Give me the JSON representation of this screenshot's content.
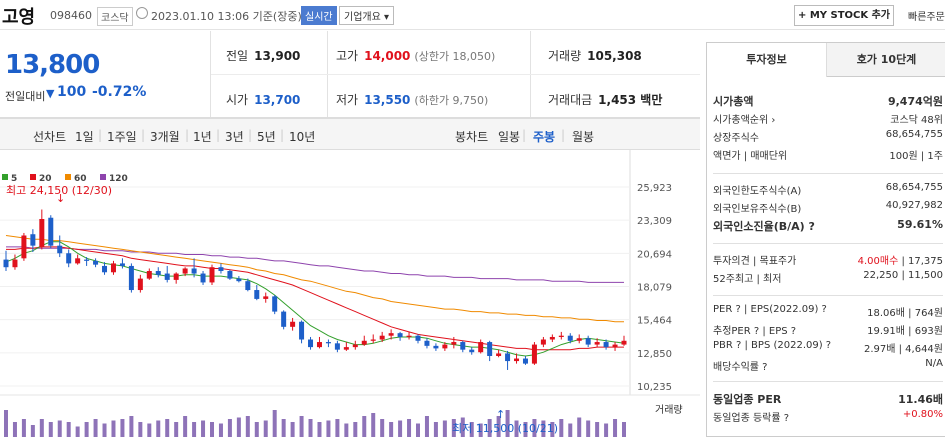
{
  "header": {
    "name": "고영",
    "code": "098460",
    "market": "코스닥",
    "datetime": "2023.01.10 13:06 기준(장중)",
    "realtime": "실시간",
    "company_btn": "기업개요 ▾",
    "mystock_btn": "+ MY STOCK 추가",
    "fast_link": "빠른주문"
  },
  "summary": {
    "price": "13,800",
    "change_label": "전일대비",
    "change_arrow": "▼",
    "change_value": "100",
    "change_pct": "-0.72%",
    "prev_label": "전일",
    "prev": "13,900",
    "high_label": "고가",
    "high": "14,000",
    "upper_limit": "(상한가 18,050)",
    "volume_label": "거래량",
    "volume": "105,308",
    "open_label": "시가",
    "open": "13,700",
    "low_label": "저가",
    "low": "13,550",
    "lower_limit": "(하한가 9,750)",
    "amount_label": "거래대금",
    "amount": "1,453 백만"
  },
  "periods": {
    "line_label": "선차트",
    "line": [
      "1일",
      "1주일",
      "3개월",
      "1년",
      "3년",
      "5년",
      "10년"
    ],
    "candle_label": "봉차트",
    "candle": [
      "일봉",
      "주봉",
      "월봉"
    ],
    "active_candle": "주봉"
  },
  "chart_data": {
    "type": "candlestick",
    "legend": [
      "5",
      "20",
      "60",
      "120"
    ],
    "legend_colors": [
      "#33a02c",
      "#e0111c",
      "#f08a00",
      "#8e44ad"
    ],
    "y_ticks": [
      "25,923",
      "23,309",
      "20,694",
      "18,079",
      "15,464",
      "12,850",
      "10,235"
    ],
    "y_tick_values": [
      25923,
      23309,
      20694,
      18079,
      15464,
      12850,
      10235
    ],
    "ylim": [
      10235,
      25923
    ],
    "high_label": "최고 24,150 (12/30)",
    "low_label": "최저 11,500 (10/21)",
    "volume_label": "거래량",
    "candles": [
      [
        20200,
        19600,
        20900,
        19300
      ],
      [
        19600,
        20200,
        20600,
        19400
      ],
      [
        20300,
        22100,
        22300,
        20100
      ],
      [
        22200,
        21300,
        22600,
        20800
      ],
      [
        21200,
        23400,
        24150,
        21000
      ],
      [
        23500,
        21300,
        23700,
        21100
      ],
      [
        21300,
        20700,
        22100,
        20400
      ],
      [
        20700,
        19900,
        21000,
        19600
      ],
      [
        19900,
        20300,
        20600,
        19800
      ],
      [
        20200,
        20100,
        20400,
        19700
      ],
      [
        20100,
        19800,
        20300,
        19600
      ],
      [
        19700,
        19200,
        20000,
        19000
      ],
      [
        19200,
        19900,
        20100,
        19000
      ],
      [
        19900,
        19700,
        20300,
        19500
      ],
      [
        19700,
        17800,
        19900,
        17600
      ],
      [
        17800,
        18700,
        19000,
        17600
      ],
      [
        18700,
        19300,
        19500,
        18600
      ],
      [
        19300,
        19000,
        19600,
        18800
      ],
      [
        19100,
        18600,
        19700,
        18400
      ],
      [
        18600,
        19100,
        19200,
        18300
      ],
      [
        19100,
        19500,
        19600,
        18900
      ],
      [
        19500,
        19100,
        20300,
        18800
      ],
      [
        19100,
        18400,
        19300,
        18200
      ],
      [
        18400,
        19600,
        19800,
        18200
      ],
      [
        19600,
        19300,
        19900,
        19100
      ],
      [
        19300,
        18700,
        19400,
        18600
      ],
      [
        18700,
        18500,
        18900,
        18400
      ],
      [
        18500,
        17800,
        18700,
        17700
      ],
      [
        17800,
        17100,
        18200,
        17000
      ],
      [
        17100,
        17300,
        17600,
        16800
      ],
      [
        17300,
        16100,
        17400,
        15900
      ],
      [
        16100,
        14900,
        16200,
        14700
      ],
      [
        14900,
        15300,
        15600,
        14600
      ],
      [
        15300,
        13900,
        15400,
        13600
      ],
      [
        13900,
        13300,
        14100,
        13100
      ],
      [
        13300,
        13700,
        14100,
        13200
      ],
      [
        13700,
        13600,
        13900,
        13300
      ],
      [
        13600,
        13100,
        13800,
        12900
      ],
      [
        13100,
        13300,
        13700,
        13000
      ],
      [
        13300,
        13500,
        13800,
        13100
      ],
      [
        13500,
        13800,
        14200,
        13400
      ],
      [
        13800,
        13900,
        14300,
        13600
      ],
      [
        13900,
        14200,
        14500,
        13700
      ],
      [
        14200,
        14400,
        14700,
        13900
      ],
      [
        14400,
        14100,
        14500,
        13800
      ],
      [
        14100,
        14200,
        14500,
        13900
      ],
      [
        14200,
        13800,
        14300,
        13600
      ],
      [
        13800,
        13400,
        14000,
        13200
      ],
      [
        13400,
        13200,
        13600,
        13000
      ],
      [
        13200,
        13500,
        13700,
        13000
      ],
      [
        13500,
        13700,
        14100,
        13200
      ],
      [
        13700,
        13100,
        13800,
        12900
      ],
      [
        13100,
        12900,
        13300,
        12700
      ],
      [
        12900,
        13700,
        13900,
        12800
      ],
      [
        13700,
        12600,
        13800,
        12200
      ],
      [
        12600,
        12800,
        13100,
        12500
      ],
      [
        12800,
        12200,
        13000,
        11500
      ],
      [
        12200,
        12400,
        12800,
        12000
      ],
      [
        12400,
        12000,
        12600,
        11900
      ],
      [
        12000,
        13500,
        13700,
        11900
      ],
      [
        13500,
        13900,
        14100,
        13300
      ],
      [
        13900,
        14100,
        14300,
        13700
      ],
      [
        14100,
        14200,
        14500,
        13900
      ],
      [
        14200,
        13800,
        14400,
        13600
      ],
      [
        13800,
        14000,
        14300,
        13600
      ],
      [
        14000,
        13500,
        14200,
        13300
      ],
      [
        13500,
        13700,
        14000,
        13300
      ],
      [
        13700,
        13300,
        13900,
        13100
      ],
      [
        13300,
        13500,
        13700,
        13000
      ],
      [
        13500,
        13800,
        14200,
        13400
      ]
    ],
    "ma5": [
      20000,
      20300,
      20700,
      20900,
      21300,
      21600,
      21600,
      21200,
      20700,
      20300,
      20100,
      19900,
      19800,
      19700,
      19500,
      19300,
      19100,
      19000,
      18900,
      18900,
      19000,
      19000,
      18900,
      18900,
      18900,
      18800,
      18700,
      18600,
      18300,
      17900,
      17400,
      16800,
      16200,
      15600,
      15000,
      14600,
      14200,
      13900,
      13700,
      13500,
      13500,
      13600,
      13800,
      14000,
      14100,
      14100,
      14100,
      14000,
      13800,
      13600,
      13500,
      13400,
      13300,
      13300,
      13200,
      13100,
      12900,
      12700,
      12600,
      12700,
      12900,
      13200,
      13500,
      13700,
      13900,
      14000,
      13900,
      13800,
      13700,
      13600
    ],
    "ma20": [
      21000,
      21000,
      21100,
      21100,
      21200,
      21200,
      21200,
      21100,
      21000,
      20900,
      20800,
      20700,
      20600,
      20500,
      20300,
      20200,
      20100,
      20000,
      19900,
      19800,
      19700,
      19700,
      19600,
      19500,
      19500,
      19400,
      19300,
      19200,
      19000,
      18800,
      18600,
      18400,
      18200,
      17900,
      17600,
      17300,
      17000,
      16700,
      16400,
      16100,
      15800,
      15500,
      15200,
      14900,
      14700,
      14500,
      14300,
      14200,
      14100,
      14000,
      13900,
      13800,
      13700,
      13600,
      13500,
      13400,
      13300,
      13200,
      13200,
      13100,
      13100,
      13100,
      13100,
      13100,
      13200,
      13200,
      13300,
      13300,
      13300,
      13300
    ],
    "ma60": [
      22100,
      22000,
      21900,
      21800,
      21800,
      21700,
      21700,
      21600,
      21500,
      21400,
      21300,
      21200,
      21100,
      21000,
      20900,
      20800,
      20700,
      20600,
      20500,
      20400,
      20300,
      20200,
      20100,
      20000,
      19900,
      19800,
      19700,
      19600,
      19400,
      19300,
      19100,
      19000,
      18800,
      18600,
      18500,
      18300,
      18100,
      17900,
      17700,
      17600,
      17400,
      17200,
      17100,
      16900,
      16800,
      16700,
      16600,
      16500,
      16400,
      16300,
      16300,
      16200,
      16100,
      16100,
      16000,
      16000,
      15900,
      15900,
      15800,
      15800,
      15700,
      15700,
      15600,
      15600,
      15500,
      15500,
      15400,
      15400,
      15300,
      15300
    ],
    "ma120": [
      21200,
      21200,
      21200,
      21100,
      21100,
      21100,
      21100,
      21100,
      21000,
      21000,
      21000,
      20900,
      20900,
      20900,
      20800,
      20800,
      20800,
      20700,
      20700,
      20700,
      20600,
      20600,
      20600,
      20500,
      20500,
      20400,
      20400,
      20300,
      20300,
      20200,
      20100,
      20100,
      20000,
      19900,
      19800,
      19700,
      19700,
      19600,
      19500,
      19400,
      19300,
      19300,
      19200,
      19100,
      19100,
      19000,
      19000,
      18900,
      18900,
      18900,
      18800,
      18800,
      18800,
      18700,
      18700,
      18700,
      18700,
      18600,
      18600,
      18600,
      18600,
      18500,
      18500,
      18500,
      18500,
      18400,
      18400,
      18400,
      18400,
      18400
    ],
    "volumes": [
      0.9,
      0.5,
      0.6,
      0.4,
      0.6,
      0.5,
      0.55,
      0.5,
      0.35,
      0.5,
      0.6,
      0.45,
      0.55,
      0.6,
      0.7,
      0.5,
      0.45,
      0.55,
      0.6,
      0.5,
      0.7,
      0.5,
      0.55,
      0.5,
      0.45,
      0.6,
      0.65,
      0.7,
      0.5,
      0.55,
      0.9,
      0.6,
      0.5,
      0.7,
      0.6,
      0.5,
      0.55,
      0.6,
      0.45,
      0.5,
      0.7,
      0.8,
      0.6,
      0.5,
      0.55,
      0.6,
      0.45,
      0.7,
      0.5,
      0.55,
      0.6,
      0.65,
      0.5,
      0.45,
      0.6,
      0.7,
      0.9,
      0.55,
      0.5,
      0.6,
      0.55,
      0.5,
      0.6,
      0.45,
      0.65,
      0.55,
      0.5,
      0.45,
      0.6,
      0.5
    ]
  },
  "invest": {
    "tab1": "투자정보",
    "tab2": "호가 10단계",
    "rows": [
      {
        "l": "시가총액",
        "r": "9,474억원",
        "bold": true
      },
      {
        "l": "시가총액순위 ›",
        "r": "코스닥 48위"
      },
      {
        "l": "상장주식수",
        "r": "68,654,755"
      },
      {
        "l": "액면가 | 매매단위",
        "r": "100원 | 1주"
      },
      {
        "l": "외국인한도주식수(A)",
        "r": "68,654,755"
      },
      {
        "l": "외국인보유주식수(B)",
        "r": "40,927,982"
      },
      {
        "l": "외국인소진율(B/A) ?",
        "r": "59.61%",
        "bold": true
      },
      {
        "l": "투자의견 | 목표주가",
        "r": "4.00매수 | 17,375",
        "r_up": "4.00매수"
      },
      {
        "l": "52주최고 | 최저",
        "r": "22,250 | 11,500"
      },
      {
        "l": "PER ? | EPS(2022.09) ?",
        "r": "18.06배 | 764원"
      },
      {
        "l": "추정PER ? | EPS ?",
        "r": "19.91배 | 693원"
      },
      {
        "l": "PBR ? | BPS (2022.09) ?",
        "r": "2.97배 | 4,644원"
      },
      {
        "l": "배당수익률 ?",
        "r": "N/A"
      },
      {
        "l": "동일업종 PER",
        "r": "11.46배",
        "bold": true
      },
      {
        "l": "동일업종 등락률 ?",
        "r": "+0.80%",
        "up": true
      }
    ]
  }
}
